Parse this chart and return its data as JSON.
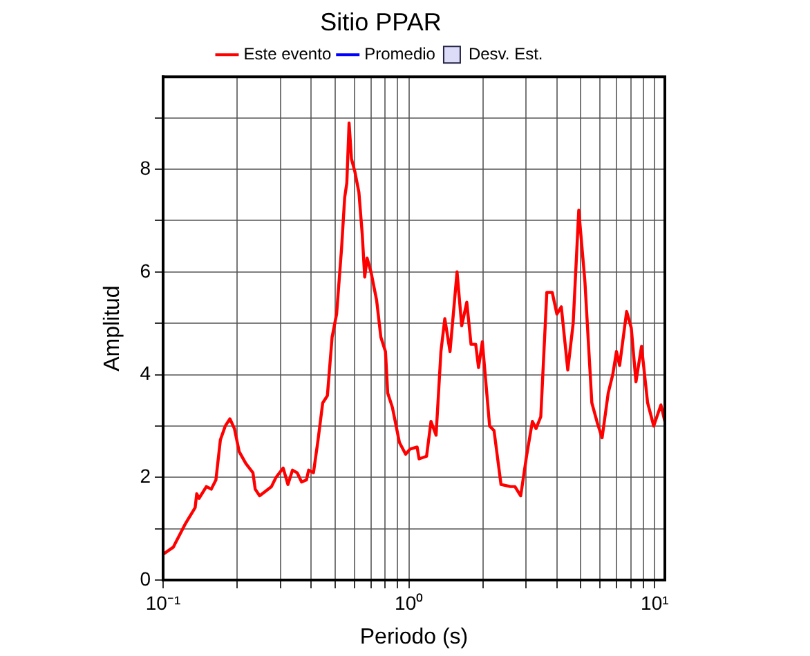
{
  "chart_data": {
    "type": "line",
    "title": "Sitio PPAR",
    "xlabel": "Periodo (s)",
    "ylabel": "Amplitud",
    "log": "x",
    "grid": true,
    "legend": "top",
    "line_style": "solid",
    "marker": "none",
    "xlim": [
      0.1,
      11
    ],
    "ylim": [
      0,
      9.8
    ],
    "xticks": [
      {
        "value": 0.1,
        "label": "10⁻¹"
      },
      {
        "value": 0.2,
        "label": null
      },
      {
        "value": 0.3,
        "label": null
      },
      {
        "value": 0.4,
        "label": null
      },
      {
        "value": 0.5,
        "label": null
      },
      {
        "value": 0.6,
        "label": null
      },
      {
        "value": 0.7,
        "label": null
      },
      {
        "value": 0.8,
        "label": null
      },
      {
        "value": 0.9,
        "label": null
      },
      {
        "value": 1,
        "label": "10⁰"
      },
      {
        "value": 2,
        "label": null
      },
      {
        "value": 3,
        "label": null
      },
      {
        "value": 4,
        "label": null
      },
      {
        "value": 5,
        "label": null
      },
      {
        "value": 6,
        "label": null
      },
      {
        "value": 7,
        "label": null
      },
      {
        "value": 8,
        "label": null
      },
      {
        "value": 9,
        "label": null
      },
      {
        "value": 10,
        "label": "10¹"
      }
    ],
    "yticks": [
      0,
      {
        "value": 1,
        "label": null
      },
      2,
      {
        "value": 3,
        "label": null
      },
      4,
      {
        "value": 5,
        "label": null
      },
      6,
      {
        "value": 7,
        "label": null
      },
      8,
      {
        "value": 9,
        "label": null
      }
    ],
    "series": [
      {
        "name": "Este evento",
        "color": "#ff0000",
        "x": [
          0.1,
          0.11,
          0.123,
          0.135,
          0.137,
          0.14,
          0.15,
          0.157,
          0.164,
          0.171,
          0.179,
          0.187,
          0.195,
          0.204,
          0.217,
          0.232,
          0.237,
          0.247,
          0.276,
          0.288,
          0.308,
          0.322,
          0.336,
          0.351,
          0.366,
          0.383,
          0.391,
          0.409,
          0.427,
          0.446,
          0.466,
          0.487,
          0.508,
          0.532,
          0.548,
          0.559,
          0.571,
          0.584,
          0.603,
          0.626,
          0.646,
          0.661,
          0.676,
          0.701,
          0.739,
          0.769,
          0.803,
          0.82,
          0.857,
          0.915,
          0.97,
          1.01,
          1.08,
          1.1,
          1.18,
          1.23,
          1.29,
          1.35,
          1.4,
          1.47,
          1.57,
          1.64,
          1.72,
          1.79,
          1.87,
          1.92,
          1.99,
          2.13,
          2.22,
          2.37,
          2.59,
          2.7,
          2.85,
          3.01,
          3.18,
          3.29,
          3.44,
          3.64,
          3.83,
          4,
          4.17,
          4.43,
          4.66,
          4.91,
          5.2,
          5.55,
          5.85,
          6.11,
          6.47,
          6.75,
          6.99,
          7.2,
          7.69,
          8.03,
          8.39,
          8.84,
          9.36,
          9.91,
          10.6,
          11
        ],
        "values": [
          0.5,
          0.64,
          1.09,
          1.41,
          1.68,
          1.59,
          1.82,
          1.77,
          1.95,
          2.73,
          3,
          3.14,
          2.95,
          2.5,
          2.27,
          2.09,
          1.77,
          1.64,
          1.82,
          2,
          2.18,
          1.86,
          2.14,
          2.09,
          1.91,
          1.95,
          2.14,
          2.09,
          2.73,
          3.45,
          3.59,
          4.73,
          5.18,
          6.45,
          7.45,
          7.73,
          8.9,
          8.2,
          7.95,
          7.55,
          6.73,
          5.9,
          6.27,
          6,
          5.45,
          4.73,
          4.45,
          3.64,
          3.36,
          2.68,
          2.45,
          2.55,
          2.59,
          2.36,
          2.41,
          3.09,
          2.82,
          4.45,
          5.09,
          4.45,
          6,
          4.95,
          5.41,
          4.59,
          4.59,
          4.14,
          4.64,
          3,
          2.91,
          1.86,
          1.82,
          1.82,
          1.64,
          2.41,
          3.09,
          2.95,
          3.18,
          5.6,
          5.6,
          5.18,
          5.32,
          4.09,
          5,
          7.2,
          5.82,
          3.45,
          3.05,
          2.77,
          3.64,
          4,
          4.45,
          4.18,
          5.23,
          4.91,
          3.86,
          4.55,
          3.45,
          3,
          3.41,
          3.09
        ]
      },
      {
        "name": "Promedio",
        "type": "line",
        "color": "#0000ff"
      },
      {
        "name": "Desv. Est.",
        "type": "area",
        "color": "#dcdcf8"
      }
    ]
  }
}
